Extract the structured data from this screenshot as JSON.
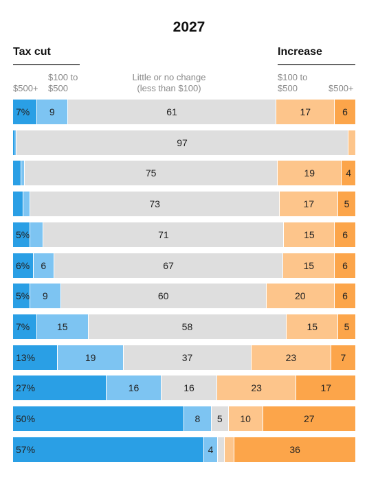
{
  "title": "2027",
  "groups": {
    "tax_cut": "Tax cut",
    "increase": "Increase"
  },
  "columns": {
    "cut_large": "$500+",
    "cut_small_line1": "$100 to",
    "cut_small_line2": "$500",
    "no_change_line1": "Little or no change",
    "no_change_line2": "(less than $100)",
    "inc_small_line1": "$100 to",
    "inc_small_line2": "$500",
    "inc_large": "$500+"
  },
  "colors": {
    "cut_large": "#2a9fe5",
    "cut_small": "#7dc4f2",
    "no_change": "#dedede",
    "inc_small": "#fdc58b",
    "inc_large": "#fca54a"
  },
  "chart_data": {
    "type": "bar",
    "orientation": "horizontal-stacked-100",
    "title": "2027",
    "series": [
      {
        "name": "Tax cut $500+",
        "values": [
          7,
          0.5,
          2.5,
          3,
          5,
          6,
          5,
          7,
          13,
          27,
          50,
          57
        ]
      },
      {
        "name": "Tax cut $100 to $500",
        "values": [
          9,
          0.5,
          1,
          2,
          4,
          6,
          9,
          15,
          19,
          16,
          8,
          4
        ]
      },
      {
        "name": "Little or no change (less than $100)",
        "values": [
          61,
          97,
          75,
          73,
          71,
          67,
          60,
          58,
          37,
          16,
          5,
          2
        ]
      },
      {
        "name": "Increase $100 to $500",
        "values": [
          17,
          2,
          19,
          17,
          15,
          15,
          20,
          15,
          23,
          23,
          10,
          3
        ]
      },
      {
        "name": "Increase $500+",
        "values": [
          6,
          0,
          4,
          5,
          6,
          6,
          6,
          5,
          7,
          17,
          27,
          36
        ]
      }
    ],
    "labels": [
      [
        "7%",
        "9",
        "61",
        "17",
        "6"
      ],
      [
        "",
        "",
        "97",
        "",
        ""
      ],
      [
        "",
        "",
        "75",
        "19",
        "4"
      ],
      [
        "",
        "",
        "73",
        "17",
        "5"
      ],
      [
        "5%",
        "",
        "71",
        "15",
        "6"
      ],
      [
        "6%",
        "6",
        "67",
        "15",
        "6"
      ],
      [
        "5%",
        "9",
        "60",
        "20",
        "6"
      ],
      [
        "7%",
        "15",
        "58",
        "15",
        "5"
      ],
      [
        "13%",
        "19",
        "37",
        "23",
        "7"
      ],
      [
        "27%",
        "16",
        "16",
        "23",
        "17"
      ],
      [
        "50%",
        "8",
        "5",
        "10",
        "27"
      ],
      [
        "57%",
        "4",
        "",
        "",
        "36"
      ]
    ]
  }
}
